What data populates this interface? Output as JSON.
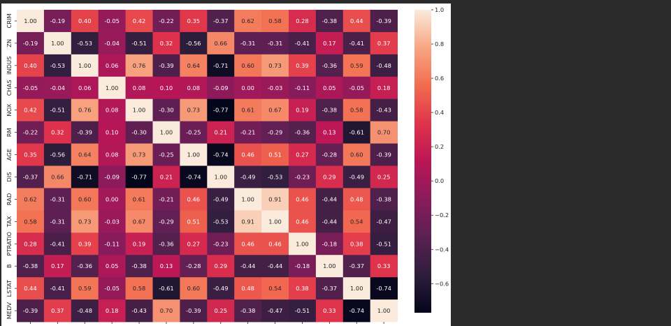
{
  "chart_data": {
    "type": "heatmap",
    "labels": [
      "CRIM",
      "ZN",
      "INDUS",
      "CHAS",
      "NOX",
      "RM",
      "AGE",
      "DIS",
      "RAD",
      "TAX",
      "PTRATIO",
      "B",
      "LSTAT",
      "MEDV"
    ],
    "values": [
      [
        1.0,
        -0.19,
        0.4,
        -0.05,
        0.42,
        -0.22,
        0.35,
        -0.37,
        0.62,
        0.58,
        0.28,
        -0.38,
        0.44,
        -0.39
      ],
      [
        -0.19,
        1.0,
        -0.53,
        -0.04,
        -0.51,
        0.32,
        -0.56,
        0.66,
        -0.31,
        -0.31,
        -0.41,
        0.17,
        -0.41,
        0.37
      ],
      [
        0.4,
        -0.53,
        1.0,
        0.06,
        0.76,
        -0.39,
        0.64,
        -0.71,
        0.6,
        0.73,
        0.39,
        -0.36,
        0.59,
        -0.48
      ],
      [
        -0.05,
        -0.04,
        0.06,
        1.0,
        0.08,
        0.1,
        0.08,
        -0.09,
        0.0,
        -0.03,
        -0.11,
        0.05,
        -0.05,
        0.18
      ],
      [
        0.42,
        -0.51,
        0.76,
        0.08,
        1.0,
        -0.3,
        0.73,
        -0.77,
        0.61,
        0.67,
        0.19,
        -0.38,
        0.58,
        -0.43
      ],
      [
        -0.22,
        0.32,
        -0.39,
        0.1,
        -0.3,
        1.0,
        -0.25,
        0.21,
        -0.21,
        -0.29,
        -0.36,
        0.13,
        -0.61,
        0.7
      ],
      [
        0.35,
        -0.56,
        0.64,
        0.08,
        0.73,
        -0.25,
        1.0,
        -0.74,
        0.46,
        0.51,
        0.27,
        -0.28,
        0.6,
        -0.39
      ],
      [
        -0.37,
        0.66,
        -0.71,
        -0.09,
        -0.77,
        0.21,
        -0.74,
        1.0,
        -0.49,
        -0.53,
        -0.23,
        0.29,
        -0.49,
        0.25
      ],
      [
        0.62,
        -0.31,
        0.6,
        0.0,
        0.61,
        -0.21,
        0.46,
        -0.49,
        1.0,
        0.91,
        0.46,
        -0.44,
        0.48,
        -0.38
      ],
      [
        0.58,
        -0.31,
        0.73,
        -0.03,
        0.67,
        -0.29,
        0.51,
        -0.53,
        0.91,
        1.0,
        0.46,
        -0.44,
        0.54,
        -0.47
      ],
      [
        0.28,
        -0.41,
        0.39,
        -0.11,
        0.19,
        -0.36,
        0.27,
        -0.23,
        0.46,
        0.46,
        1.0,
        -0.18,
        0.38,
        -0.51
      ],
      [
        -0.38,
        0.17,
        -0.36,
        0.05,
        -0.38,
        0.13,
        -0.28,
        0.29,
        -0.44,
        -0.44,
        -0.18,
        1.0,
        -0.37,
        0.33
      ],
      [
        0.44,
        -0.41,
        0.59,
        -0.05,
        0.58,
        -0.61,
        0.6,
        -0.49,
        0.48,
        0.54,
        0.38,
        -0.37,
        1.0,
        -0.74
      ],
      [
        -0.39,
        0.37,
        -0.48,
        0.18,
        -0.43,
        0.7,
        -0.39,
        0.25,
        -0.38,
        -0.47,
        -0.51,
        0.33,
        -0.74,
        1.0
      ]
    ],
    "colorbar": {
      "vmin": -0.77,
      "vmax": 1.0,
      "ticks": [
        1.0,
        0.8,
        0.6,
        0.4,
        0.2,
        0.0,
        -0.2,
        -0.4,
        -0.6
      ],
      "tick_labels": [
        "1.0",
        "0.8",
        "0.6",
        "0.4",
        "0.2",
        "0.0",
        "−0.2",
        "−0.4",
        "−0.6"
      ],
      "colormap": "rocket"
    }
  }
}
